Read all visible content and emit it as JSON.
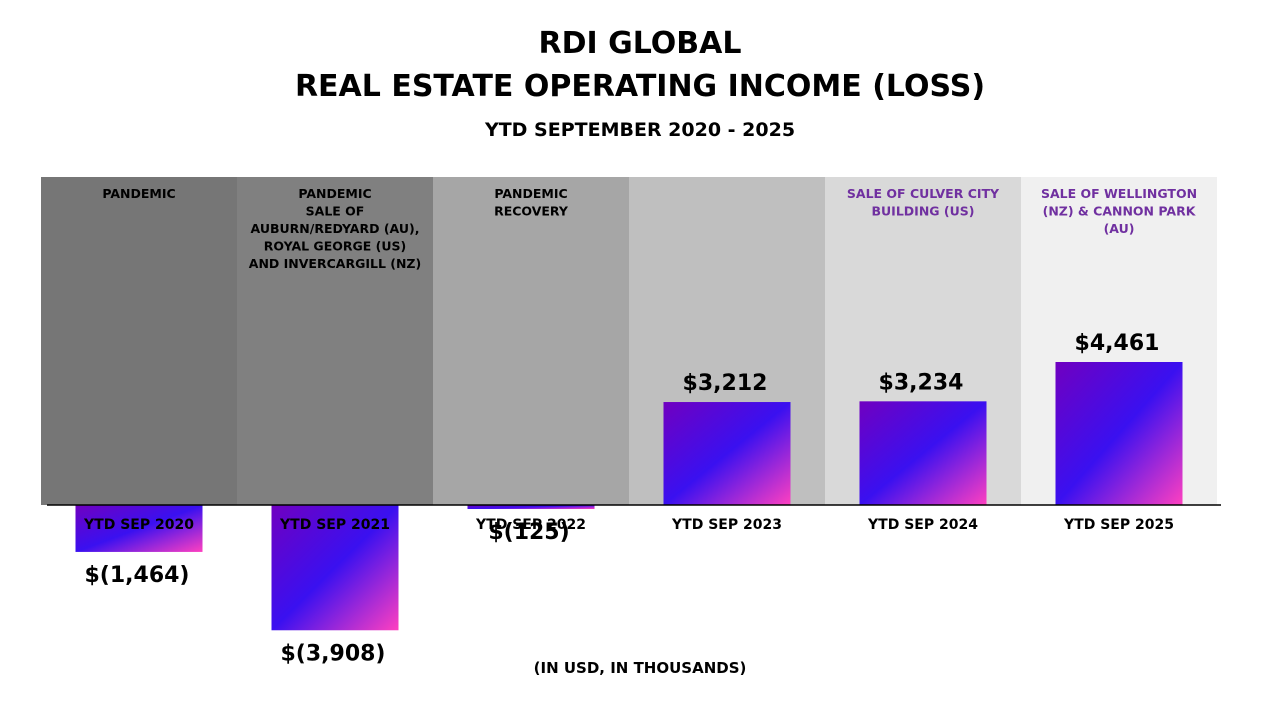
{
  "title_line1": "RDI GLOBAL",
  "title_line2": "REAL ESTATE OPERATING INCOME (LOSS)",
  "subtitle": "YTD SEPTEMBER 2020 - 2025",
  "footnote": "(IN USD, IN THOUSANDS)",
  "colors": {
    "period_backgrounds": [
      "#767676",
      "#808080",
      "#a6a6a6",
      "#bfbfbf",
      "#d9d9d9",
      "#f0f0f0"
    ],
    "annotation_black": "#000000",
    "annotation_purple": "#7030a0",
    "bar_gradient": [
      "#7000c0",
      "#3a10f0",
      "#ff40c0"
    ]
  },
  "chart_data": {
    "type": "bar",
    "title": "RDI GLOBAL REAL ESTATE OPERATING INCOME (LOSS)",
    "subtitle": "YTD SEPTEMBER 2020 - 2025",
    "xlabel": "",
    "ylabel": "(IN USD, IN THOUSANDS)",
    "categories": [
      "YTD SEP 2020",
      "YTD SEP 2021",
      "YTD SEP 2022",
      "YTD SEP 2023",
      "YTD SEP 2024",
      "YTD SEP 2025"
    ],
    "values": [
      -1464,
      -3908,
      -125,
      3212,
      3234,
      4461
    ],
    "value_labels": [
      "$(1,464)",
      "$(3,908)",
      "$(125)",
      "$3,212",
      "$3,234",
      "$4,461"
    ],
    "ylim": [
      -3908,
      4461
    ],
    "grid": false,
    "annotations": [
      {
        "category": "YTD SEP 2020",
        "lines": [
          "PANDEMIC"
        ],
        "color": "black"
      },
      {
        "category": "YTD SEP 2021",
        "lines": [
          "PANDEMIC",
          "SALE OF",
          "AUBURN/REDYARD (AU),",
          "ROYAL GEORGE (US)",
          "AND INVERCARGILL (NZ)"
        ],
        "color": "black"
      },
      {
        "category": "YTD SEP 2022",
        "lines": [
          "PANDEMIC",
          "RECOVERY"
        ],
        "color": "black"
      },
      {
        "category": "YTD SEP 2023",
        "lines": [],
        "color": "black"
      },
      {
        "category": "YTD SEP 2024",
        "lines": [
          "SALE OF CULVER CITY",
          "BUILDING (US)"
        ],
        "color": "purple"
      },
      {
        "category": "YTD SEP 2025",
        "lines": [
          "SALE OF WELLINGTON",
          "(NZ) & CANNON PARK",
          "(AU)"
        ],
        "color": "purple"
      }
    ]
  }
}
